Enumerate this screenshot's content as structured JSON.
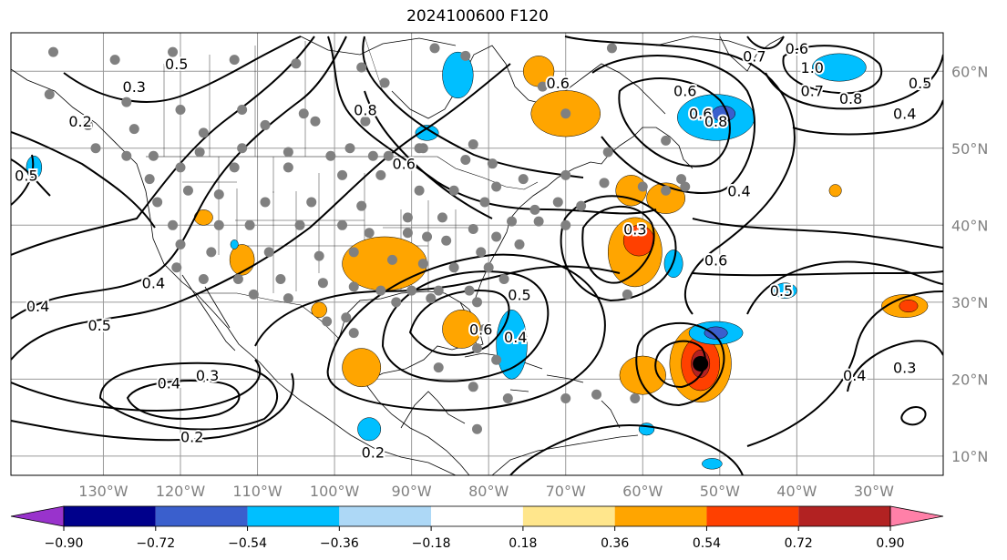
{
  "title": "2024100600 F120",
  "map": {
    "projection": "plate-carree",
    "lon_range": [
      -142,
      -21
    ],
    "lat_range": [
      7.5,
      65
    ],
    "grid": true,
    "lon_ticks": [
      {
        "lon": -130,
        "label": "130°W"
      },
      {
        "lon": -120,
        "label": "120°W"
      },
      {
        "lon": -110,
        "label": "110°W"
      },
      {
        "lon": -100,
        "label": "100°W"
      },
      {
        "lon": -90,
        "label": "90°W"
      },
      {
        "lon": -80,
        "label": "80°W"
      },
      {
        "lon": -70,
        "label": "70°W"
      },
      {
        "lon": -60,
        "label": "60°W"
      },
      {
        "lon": -50,
        "label": "50°W"
      },
      {
        "lon": -40,
        "label": "40°W"
      },
      {
        "lon": -30,
        "label": "30°W"
      }
    ],
    "lat_ticks": [
      {
        "lat": 60,
        "label": "60°N"
      },
      {
        "lat": 50,
        "label": "50°N"
      },
      {
        "lat": 40,
        "label": "40°N"
      },
      {
        "lat": 30,
        "label": "30°N"
      },
      {
        "lat": 20,
        "label": "20°N"
      },
      {
        "lat": 10,
        "label": "10°N"
      }
    ],
    "contour_labels": [
      {
        "text": "0.5",
        "lon": -120.5,
        "lat": 61
      },
      {
        "text": "0.3",
        "lon": -126,
        "lat": 58
      },
      {
        "text": "0.2",
        "lon": -133,
        "lat": 53.5
      },
      {
        "text": "0.5",
        "lon": -140,
        "lat": 46.5
      },
      {
        "text": "0.4",
        "lon": -138.5,
        "lat": 29.5
      },
      {
        "text": "0.5",
        "lon": -130.5,
        "lat": 27
      },
      {
        "text": "0.4",
        "lon": -123.5,
        "lat": 32.5
      },
      {
        "text": "0.4",
        "lon": -121.5,
        "lat": 19.5
      },
      {
        "text": "0.3",
        "lon": -116.5,
        "lat": 20.5
      },
      {
        "text": "0.2",
        "lon": -118.5,
        "lat": 12.5
      },
      {
        "text": "0.2",
        "lon": -95,
        "lat": 10.5
      },
      {
        "text": "0.8",
        "lon": -96,
        "lat": 55
      },
      {
        "text": "0.6",
        "lon": -91,
        "lat": 48
      },
      {
        "text": "0.5",
        "lon": -76,
        "lat": 31
      },
      {
        "text": "0.6",
        "lon": -81,
        "lat": 26.5
      },
      {
        "text": "0.4",
        "lon": -76.5,
        "lat": 25.5
      },
      {
        "text": "0.6",
        "lon": -71,
        "lat": 58.5
      },
      {
        "text": "0.3",
        "lon": -61,
        "lat": 39.5
      },
      {
        "text": "0.6",
        "lon": -54.5,
        "lat": 57.5
      },
      {
        "text": "0.6",
        "lon": -52.5,
        "lat": 54.5
      },
      {
        "text": "0.8",
        "lon": -50.5,
        "lat": 53.5
      },
      {
        "text": "0.4",
        "lon": -47.5,
        "lat": 44.5
      },
      {
        "text": "0.6",
        "lon": -50.5,
        "lat": 35.5
      },
      {
        "text": "0.5",
        "lon": -42,
        "lat": 31.5
      },
      {
        "text": "0.7",
        "lon": -45.5,
        "lat": 62
      },
      {
        "text": "0.6",
        "lon": -40,
        "lat": 63
      },
      {
        "text": "1.0",
        "lon": -38,
        "lat": 60.5
      },
      {
        "text": "0.7",
        "lon": -38,
        "lat": 57.5
      },
      {
        "text": "0.8",
        "lon": -33,
        "lat": 56.5
      },
      {
        "text": "0.5",
        "lon": -24,
        "lat": 58.5
      },
      {
        "text": "0.4",
        "lon": -26,
        "lat": 54.5
      },
      {
        "text": "0.4",
        "lon": -32.5,
        "lat": 20.5
      },
      {
        "text": "0.3",
        "lon": -26,
        "lat": 21.5
      }
    ],
    "positive_anomalies": [
      {
        "lon": -73.5,
        "lat": 60,
        "rx": 2,
        "ry": 2,
        "level": 0.45
      },
      {
        "lon": -70,
        "lat": 54.5,
        "rx": 4.5,
        "ry": 3,
        "level": 0.45
      },
      {
        "lon": -61.5,
        "lat": 44.5,
        "rx": 2,
        "ry": 2,
        "level": 0.45
      },
      {
        "lon": -57,
        "lat": 43.5,
        "rx": 2.5,
        "ry": 2,
        "level": 0.45
      },
      {
        "lon": -61,
        "lat": 36.5,
        "rx": 3.5,
        "ry": 4.5,
        "level": 0.45
      },
      {
        "lon": -60.5,
        "lat": 38,
        "rx": 2,
        "ry": 2,
        "level": 0.63
      },
      {
        "lon": -93.5,
        "lat": 35,
        "rx": 5.5,
        "ry": 3.5,
        "level": 0.45
      },
      {
        "lon": -112,
        "lat": 35.5,
        "rx": 1.6,
        "ry": 2,
        "level": 0.45
      },
      {
        "lon": -83.5,
        "lat": 26.5,
        "rx": 2.5,
        "ry": 2.5,
        "level": 0.45
      },
      {
        "lon": -96.5,
        "lat": 21.5,
        "rx": 2.5,
        "ry": 2.5,
        "level": 0.45
      },
      {
        "lon": -60,
        "lat": 20.5,
        "rx": 3,
        "ry": 2.5,
        "level": 0.45
      },
      {
        "lon": -52.5,
        "lat": 22,
        "rx": 4,
        "ry": 5,
        "level": 0.45
      },
      {
        "lon": -52.5,
        "lat": 22,
        "rx": 2.5,
        "ry": 3.5,
        "level": 0.63
      },
      {
        "lon": -52.5,
        "lat": 22,
        "rx": 1.2,
        "ry": 1.8,
        "level": 0.81
      },
      {
        "lon": -26,
        "lat": 29.5,
        "rx": 3,
        "ry": 1.5,
        "level": 0.45
      },
      {
        "lon": -25.5,
        "lat": 29.5,
        "rx": 1.2,
        "ry": 0.8,
        "level": 0.63
      },
      {
        "lon": -35,
        "lat": 44.5,
        "rx": 0.8,
        "ry": 0.8,
        "level": 0.45
      },
      {
        "lon": -102,
        "lat": 29,
        "rx": 1,
        "ry": 1,
        "level": 0.45
      },
      {
        "lon": -117,
        "lat": 41,
        "rx": 1.2,
        "ry": 1,
        "level": 0.45
      }
    ],
    "negative_anomalies": [
      {
        "lon": -84,
        "lat": 59.5,
        "rx": 2,
        "ry": 3,
        "level": -0.45
      },
      {
        "lon": -50.5,
        "lat": 54,
        "rx": 5,
        "ry": 3,
        "level": -0.45
      },
      {
        "lon": -49.5,
        "lat": 54.5,
        "rx": 1.5,
        "ry": 1,
        "level": -0.63
      },
      {
        "lon": -34.5,
        "lat": 60.5,
        "rx": 3.5,
        "ry": 1.8,
        "level": -0.45
      },
      {
        "lon": -50.5,
        "lat": 26,
        "rx": 3.5,
        "ry": 1.5,
        "level": -0.45
      },
      {
        "lon": -50.5,
        "lat": 26,
        "rx": 1.5,
        "ry": 0.8,
        "level": -0.63
      },
      {
        "lon": -77,
        "lat": 24.5,
        "rx": 2,
        "ry": 4.5,
        "level": -0.45
      },
      {
        "lon": -56,
        "lat": 35,
        "rx": 1.2,
        "ry": 1.8,
        "level": -0.45
      },
      {
        "lon": -41.5,
        "lat": 31.5,
        "rx": 1.5,
        "ry": 1,
        "level": -0.45
      },
      {
        "lon": -88,
        "lat": 52,
        "rx": 1.5,
        "ry": 1,
        "level": -0.45
      },
      {
        "lon": -95.5,
        "lat": 13.5,
        "rx": 1.5,
        "ry": 1.5,
        "level": -0.45
      },
      {
        "lon": -139,
        "lat": 47.5,
        "rx": 1,
        "ry": 1.5,
        "level": -0.45
      },
      {
        "lon": -51,
        "lat": 9,
        "rx": 1.3,
        "ry": 0.7,
        "level": -0.45
      },
      {
        "lon": -59.5,
        "lat": 13.5,
        "rx": 1,
        "ry": 0.8,
        "level": -0.45
      },
      {
        "lon": -113,
        "lat": 37.5,
        "rx": 0.5,
        "ry": 0.6,
        "level": -0.45
      }
    ],
    "storm_marker": {
      "lon": -52.5,
      "lat": 22
    },
    "station_points": [
      [
        -136.5,
        62.5
      ],
      [
        -128.5,
        61.5
      ],
      [
        -121,
        62.5
      ],
      [
        -113,
        61.5
      ],
      [
        -105,
        61
      ],
      [
        -96.5,
        60.5
      ],
      [
        -93.5,
        58.5
      ],
      [
        -87,
        63
      ],
      [
        -83,
        62
      ],
      [
        -73,
        58
      ],
      [
        -64,
        63
      ],
      [
        -70,
        54.5
      ],
      [
        -64.5,
        49.5
      ],
      [
        -57,
        51
      ],
      [
        -132,
        53
      ],
      [
        -126,
        52.5
      ],
      [
        -117,
        52
      ],
      [
        -109,
        53
      ],
      [
        -102.5,
        53.5
      ],
      [
        -96,
        53.5
      ],
      [
        -88.5,
        50
      ],
      [
        -82,
        50.5
      ],
      [
        -79.5,
        48
      ],
      [
        -75.5,
        46
      ],
      [
        -70,
        46.5
      ],
      [
        -65,
        45.5
      ],
      [
        -60,
        45
      ],
      [
        -57,
        44.5
      ],
      [
        -54.5,
        45
      ],
      [
        -55,
        46
      ],
      [
        -137,
        57
      ],
      [
        -127,
        56
      ],
      [
        -120,
        55
      ],
      [
        -112,
        55
      ],
      [
        -104,
        54.5
      ],
      [
        -98,
        50
      ],
      [
        -93,
        49
      ],
      [
        -89,
        50
      ],
      [
        -83,
        48.5
      ],
      [
        -79,
        45
      ],
      [
        -74,
        42
      ],
      [
        -71,
        43
      ],
      [
        -68,
        42.5
      ],
      [
        -123.5,
        49
      ],
      [
        -117.5,
        49.5
      ],
      [
        -112,
        50
      ],
      [
        -106,
        49.5
      ],
      [
        -100.5,
        49
      ],
      [
        -95,
        49
      ],
      [
        -131,
        50
      ],
      [
        -127,
        49
      ],
      [
        -120,
        47.5
      ],
      [
        -113,
        47.5
      ],
      [
        -106,
        47.5
      ],
      [
        -99,
        46.5
      ],
      [
        -94,
        46.5
      ],
      [
        -89,
        44.5
      ],
      [
        -84.5,
        44.5
      ],
      [
        -80.5,
        43
      ],
      [
        -77,
        40.5
      ],
      [
        -73.5,
        40.5
      ],
      [
        -70,
        40
      ],
      [
        -124,
        46
      ],
      [
        -119,
        44.5
      ],
      [
        -115,
        44
      ],
      [
        -109,
        43
      ],
      [
        -103,
        43
      ],
      [
        -96.5,
        42.5
      ],
      [
        -90.5,
        41
      ],
      [
        -86,
        41
      ],
      [
        -82,
        39.5
      ],
      [
        -79,
        38.5
      ],
      [
        -76,
        37.5
      ],
      [
        -123,
        43
      ],
      [
        -121,
        40
      ],
      [
        -115,
        40
      ],
      [
        -111,
        40
      ],
      [
        -104.5,
        40
      ],
      [
        -99,
        40
      ],
      [
        -95.5,
        39
      ],
      [
        -90.5,
        39
      ],
      [
        -88,
        38.5
      ],
      [
        -85.5,
        38
      ],
      [
        -81,
        36.5
      ],
      [
        -120,
        37.5
      ],
      [
        -116,
        36.5
      ],
      [
        -108.5,
        36.5
      ],
      [
        -102,
        36
      ],
      [
        -97.5,
        36.5
      ],
      [
        -92.5,
        35.5
      ],
      [
        -88.5,
        35
      ],
      [
        -84.5,
        34.5
      ],
      [
        -80,
        34.5
      ],
      [
        -120.5,
        34.5
      ],
      [
        -117,
        33
      ],
      [
        -112.5,
        33
      ],
      [
        -107,
        33
      ],
      [
        -101.5,
        32.5
      ],
      [
        -97.5,
        32
      ],
      [
        -94,
        31.5
      ],
      [
        -90,
        31.5
      ],
      [
        -86.5,
        31.5
      ],
      [
        -82.5,
        31.5
      ],
      [
        -78,
        33
      ],
      [
        -110.5,
        31
      ],
      [
        -106,
        30.5
      ],
      [
        -98.5,
        28
      ],
      [
        -92,
        30
      ],
      [
        -87.5,
        30.5
      ],
      [
        -81.5,
        30
      ],
      [
        -101,
        27.5
      ],
      [
        -97.5,
        26
      ],
      [
        -80.5,
        26.5
      ],
      [
        -81.5,
        24
      ],
      [
        -79,
        22.5
      ],
      [
        -86.5,
        21.5
      ],
      [
        -82,
        19
      ],
      [
        -77.5,
        17.5
      ],
      [
        -70,
        17.5
      ],
      [
        -66,
        18
      ],
      [
        -61,
        17.5
      ],
      [
        -62,
        31
      ],
      [
        -81.5,
        13.5
      ]
    ]
  },
  "colorbar": {
    "tick_labels": [
      "−0.90",
      "−0.72",
      "−0.54",
      "−0.36",
      "−0.18",
      "0.18",
      "0.36",
      "0.54",
      "0.72",
      "0.90"
    ],
    "colors": {
      "under": "#9933cc",
      "c1": "#00008b",
      "c2": "#3a5fcd",
      "c3": "#00bfff",
      "c4": "#add8f6",
      "c5": "#ffffff",
      "c6": "#ffe68c",
      "c7": "#ffa500",
      "c8": "#ff4000",
      "c9": "#b22222",
      "over": "#ff80a8"
    }
  }
}
